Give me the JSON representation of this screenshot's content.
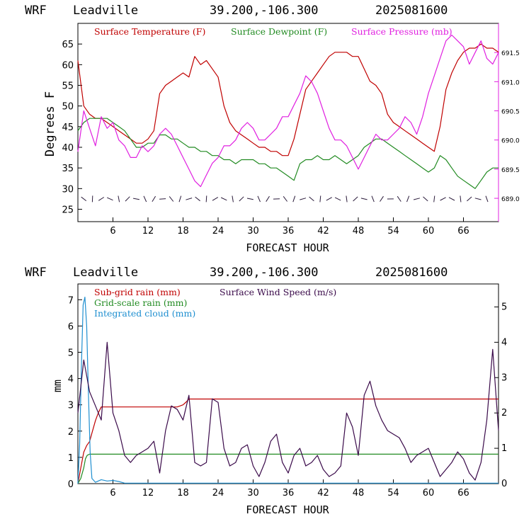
{
  "charts": [
    {
      "header": {
        "model": "WRF",
        "station": "Leadville",
        "coords": "39.200,-106.300",
        "run": "2025081600"
      },
      "xlabel": "FORECAST HOUR",
      "ylabel": "Degrees F",
      "xticks": [
        "6",
        "12",
        "18",
        "24",
        "30",
        "36",
        "42",
        "48",
        "54",
        "60",
        "66"
      ],
      "yticks_left": [
        "25",
        "30",
        "35",
        "40",
        "45",
        "50",
        "55",
        "60",
        "65"
      ],
      "yticks_right": [
        "689.0",
        "689.5",
        "690.0",
        "690.5",
        "691.0",
        "691.5"
      ],
      "legend": [
        {
          "label": "Surface Temperature (F)",
          "color": "#c00000"
        },
        {
          "label": "Surface Dewpoint (F)",
          "color": "#228b22"
        },
        {
          "label": "Surface Pressure (mb)",
          "color": "#e020e0"
        }
      ]
    },
    {
      "header": {
        "model": "WRF",
        "station": "Leadville",
        "coords": "39.200,-106.300",
        "run": "2025081600"
      },
      "xlabel": "FORECAST HOUR",
      "ylabel": "mm",
      "xticks": [
        "6",
        "12",
        "18",
        "24",
        "30",
        "36",
        "42",
        "48",
        "54",
        "60",
        "66"
      ],
      "yticks_left": [
        "0",
        "1",
        "2",
        "3",
        "4",
        "5",
        "6",
        "7"
      ],
      "yticks_right": [
        "0",
        "1",
        "2",
        "3",
        "4",
        "5"
      ],
      "legend": [
        {
          "label": "Sub-grid rain (mm)",
          "color": "#c00000"
        },
        {
          "label": "Grid-scale rain (mm)",
          "color": "#228b22"
        },
        {
          "label": "Integrated cloud (mm)",
          "color": "#1f8fd0"
        },
        {
          "label": "Surface Wind Speed (m/s)",
          "color": "#3a0a4a"
        }
      ]
    }
  ],
  "chart_data": [
    {
      "type": "line",
      "x_range": [
        0,
        72
      ],
      "ylim": [
        22,
        70
      ],
      "y2lim": [
        688.6,
        692.0
      ],
      "series": [
        {
          "name": "Surface Temperature (F)",
          "axis": "left",
          "color": "#c00000",
          "x": [
            0,
            1,
            2,
            3,
            4,
            5,
            6,
            7,
            8,
            9,
            10,
            11,
            12,
            13,
            14,
            15,
            16,
            17,
            18,
            19,
            20,
            21,
            22,
            23,
            24,
            25,
            26,
            27,
            28,
            29,
            30,
            31,
            32,
            33,
            34,
            35,
            36,
            37,
            38,
            39,
            40,
            41,
            42,
            43,
            44,
            45,
            46,
            47,
            48,
            49,
            50,
            51,
            52,
            53,
            54,
            55,
            56,
            57,
            58,
            59,
            60,
            61,
            62,
            63,
            64,
            65,
            66,
            67,
            68,
            69,
            70,
            71,
            72
          ],
          "y": [
            61,
            50,
            48,
            47,
            47,
            46,
            45,
            44,
            43,
            42,
            41,
            41,
            42,
            44,
            53,
            55,
            56,
            57,
            58,
            57,
            62,
            60,
            61,
            59,
            57,
            50,
            46,
            44,
            43,
            42,
            41,
            40,
            40,
            39,
            39,
            38,
            38,
            42,
            48,
            54,
            56,
            58,
            60,
            62,
            63,
            63,
            63,
            62,
            62,
            59,
            56,
            55,
            53,
            48,
            46,
            45,
            44,
            43,
            42,
            41,
            40,
            39,
            45,
            54,
            58,
            61,
            63,
            64,
            64,
            65,
            64,
            64,
            63
          ]
        },
        {
          "name": "Surface Dewpoint (F)",
          "axis": "left",
          "color": "#228b22",
          "x": [
            0,
            1,
            2,
            3,
            4,
            5,
            6,
            7,
            8,
            9,
            10,
            11,
            12,
            13,
            14,
            15,
            16,
            17,
            18,
            19,
            20,
            21,
            22,
            23,
            24,
            25,
            26,
            27,
            28,
            29,
            30,
            31,
            32,
            33,
            34,
            35,
            36,
            37,
            38,
            39,
            40,
            41,
            42,
            43,
            44,
            45,
            46,
            47,
            48,
            49,
            50,
            51,
            52,
            53,
            54,
            55,
            56,
            57,
            58,
            59,
            60,
            61,
            62,
            63,
            64,
            65,
            66,
            67,
            68,
            69,
            70,
            71,
            72
          ],
          "y": [
            44,
            46,
            47,
            47,
            47,
            47,
            46,
            45,
            44,
            42,
            40,
            40,
            41,
            41,
            43,
            43,
            42,
            42,
            41,
            40,
            40,
            39,
            39,
            38,
            38,
            37,
            37,
            36,
            37,
            37,
            37,
            36,
            36,
            35,
            35,
            34,
            33,
            32,
            36,
            37,
            37,
            38,
            37,
            37,
            38,
            37,
            36,
            37,
            38,
            40,
            41,
            42,
            42,
            41,
            40,
            39,
            38,
            37,
            36,
            35,
            34,
            35,
            38,
            37,
            35,
            33,
            32,
            31,
            30,
            32,
            34,
            35,
            35
          ]
        },
        {
          "name": "Surface Pressure (mb)",
          "axis": "right",
          "color": "#e020e0",
          "x": [
            0,
            1,
            2,
            3,
            4,
            5,
            6,
            7,
            8,
            9,
            10,
            11,
            12,
            13,
            14,
            15,
            16,
            17,
            18,
            19,
            20,
            21,
            22,
            23,
            24,
            25,
            26,
            27,
            28,
            29,
            30,
            31,
            32,
            33,
            34,
            35,
            36,
            37,
            38,
            39,
            40,
            41,
            42,
            43,
            44,
            45,
            46,
            47,
            48,
            49,
            50,
            51,
            52,
            53,
            54,
            55,
            56,
            57,
            58,
            59,
            60,
            61,
            62,
            63,
            64,
            65,
            66,
            67,
            68,
            69,
            70,
            71,
            72
          ],
          "y": [
            689.8,
            690.5,
            690.2,
            689.9,
            690.4,
            690.2,
            690.3,
            690.0,
            689.9,
            689.7,
            689.7,
            689.9,
            689.8,
            689.9,
            690.1,
            690.2,
            690.1,
            689.9,
            689.7,
            689.5,
            689.3,
            689.2,
            689.4,
            689.6,
            689.7,
            689.9,
            689.9,
            690.0,
            690.2,
            690.3,
            690.2,
            690.0,
            690.0,
            690.1,
            690.2,
            690.4,
            690.4,
            690.6,
            690.8,
            691.1,
            691.0,
            690.8,
            690.5,
            690.2,
            690.0,
            690.0,
            689.9,
            689.7,
            689.5,
            689.7,
            689.9,
            690.1,
            690.0,
            690.0,
            690.1,
            690.2,
            690.4,
            690.3,
            690.1,
            690.4,
            690.8,
            691.1,
            691.4,
            691.7,
            691.8,
            691.7,
            691.6,
            691.3,
            691.5,
            691.7,
            691.4,
            691.3,
            691.5
          ]
        }
      ],
      "wind_barbs": "row along bottom of plot near 26-29 F"
    },
    {
      "type": "line",
      "x_range": [
        0,
        72
      ],
      "ylim": [
        0,
        7.6
      ],
      "y2lim": [
        0,
        5.65
      ],
      "series": [
        {
          "name": "Sub-grid rain (mm)",
          "axis": "left",
          "color": "#c00000",
          "x": [
            0,
            0.5,
            1,
            1.5,
            2,
            2.5,
            3,
            3.5,
            4,
            5,
            6,
            10,
            15,
            17,
            18,
            18.5,
            19,
            20,
            30,
            40,
            50,
            60,
            70,
            72
          ],
          "y": [
            0,
            0.6,
            1.2,
            1.45,
            1.6,
            2.0,
            2.4,
            2.7,
            2.92,
            2.92,
            2.92,
            2.92,
            2.92,
            2.92,
            3.0,
            3.1,
            3.22,
            3.22,
            3.22,
            3.22,
            3.22,
            3.22,
            3.22,
            3.22
          ]
        },
        {
          "name": "Grid-scale rain (mm)",
          "axis": "left",
          "color": "#228b22",
          "x": [
            0,
            0.5,
            1,
            1.3,
            1.6,
            2,
            72
          ],
          "y": [
            0,
            0.2,
            0.6,
            0.95,
            1.08,
            1.12,
            1.12
          ]
        },
        {
          "name": "Integrated cloud (mm)",
          "axis": "left",
          "color": "#1f8fd0",
          "x": [
            0,
            0.3,
            0.6,
            0.9,
            1.2,
            1.5,
            1.8,
            2.1,
            2.4,
            3,
            4,
            5,
            6,
            7,
            8,
            12,
            20,
            30,
            40,
            50,
            60,
            72
          ],
          "y": [
            0,
            1.5,
            4.5,
            6.8,
            7.1,
            6.0,
            3.5,
            1.2,
            0.2,
            0.05,
            0.15,
            0.1,
            0.12,
            0.08,
            0.02,
            0.02,
            0.02,
            0.02,
            0.02,
            0.02,
            0.02,
            0.02
          ]
        },
        {
          "name": "Surface Wind Speed (m/s)",
          "axis": "right",
          "color": "#3a0a4a",
          "x": [
            0,
            1,
            2,
            3,
            4,
            5,
            6,
            7,
            8,
            9,
            10,
            11,
            12,
            13,
            14,
            15,
            16,
            17,
            18,
            19,
            20,
            21,
            22,
            23,
            24,
            25,
            26,
            27,
            28,
            29,
            30,
            31,
            32,
            33,
            34,
            35,
            36,
            37,
            38,
            39,
            40,
            41,
            42,
            43,
            44,
            45,
            46,
            47,
            48,
            49,
            50,
            51,
            52,
            53,
            54,
            55,
            56,
            57,
            58,
            59,
            60,
            61,
            62,
            63,
            64,
            65,
            66,
            67,
            68,
            69,
            70,
            71,
            72
          ],
          "y": [
            2.0,
            3.5,
            2.6,
            2.2,
            1.8,
            4.0,
            2.0,
            1.5,
            0.8,
            0.6,
            0.8,
            0.9,
            1.0,
            1.2,
            0.3,
            1.5,
            2.2,
            2.1,
            1.8,
            2.5,
            0.6,
            0.5,
            0.6,
            2.4,
            2.3,
            1.0,
            0.5,
            0.6,
            1.0,
            1.1,
            0.5,
            0.2,
            0.6,
            1.2,
            1.4,
            0.6,
            0.3,
            0.8,
            1.0,
            0.5,
            0.6,
            0.8,
            0.4,
            0.2,
            0.3,
            0.5,
            2.0,
            1.6,
            0.8,
            2.5,
            2.9,
            2.2,
            1.8,
            1.5,
            1.4,
            1.3,
            1.0,
            0.6,
            0.8,
            0.9,
            1.0,
            0.6,
            0.2,
            0.4,
            0.6,
            0.9,
            0.7,
            0.3,
            0.1,
            0.6,
            1.8,
            3.8,
            1.5
          ]
        }
      ]
    }
  ]
}
